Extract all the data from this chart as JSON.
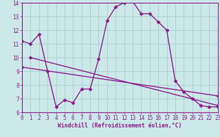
{
  "xlabel": "Windchill (Refroidissement éolien,°C)",
  "line1_x": [
    0,
    1,
    2,
    3,
    4,
    5,
    6,
    7,
    8,
    9,
    10,
    11,
    12,
    13,
    14,
    15,
    16,
    17,
    18,
    19,
    20,
    21,
    22,
    23
  ],
  "line1_y": [
    11.2,
    11.0,
    11.7,
    9.0,
    6.4,
    6.9,
    6.7,
    7.7,
    7.7,
    9.9,
    12.7,
    13.7,
    14.0,
    14.1,
    13.2,
    13.2,
    12.6,
    12.0,
    8.3,
    7.5,
    7.0,
    6.5,
    6.4,
    6.4
  ],
  "line2_x": [
    1,
    23
  ],
  "line2_y": [
    10.0,
    6.5
  ],
  "line3_x": [
    0,
    23
  ],
  "line3_y": [
    9.3,
    7.2
  ],
  "line_color": "#8b1a8b",
  "bg_color": "#cce8e8",
  "grid_color": "#aad0d0",
  "axis_color": "#660066",
  "ylim": [
    6,
    14
  ],
  "xlim": [
    0,
    23
  ],
  "yticks": [
    6,
    7,
    8,
    9,
    10,
    11,
    12,
    13,
    14
  ],
  "xticks": [
    0,
    1,
    2,
    3,
    4,
    5,
    6,
    7,
    8,
    9,
    10,
    11,
    12,
    13,
    14,
    15,
    16,
    17,
    18,
    19,
    20,
    21,
    22,
    23
  ],
  "marker": "D",
  "markersize": 2.5,
  "linewidth": 1.0,
  "tick_fontsize": 5.5,
  "xlabel_fontsize": 5.8
}
